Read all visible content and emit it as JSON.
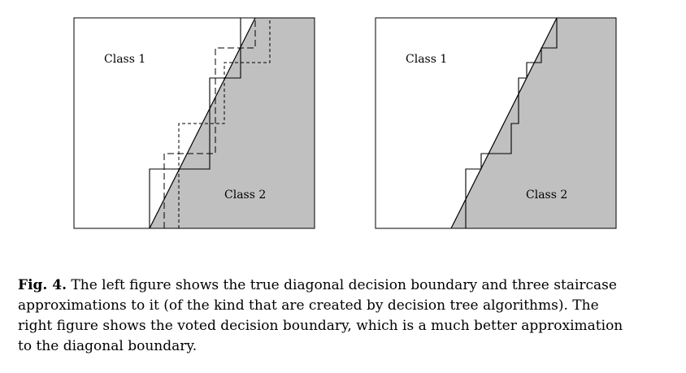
{
  "figure": {
    "left_panel": {
      "class1_label": "Class 1",
      "class2_label": "Class 2",
      "shade_color": "#c0c0c0",
      "lines": [
        "true diagonal decision boundary",
        "staircase approximation 1 (solid)",
        "staircase approximation 2 (dashed)",
        "staircase approximation 3 (dashed)"
      ]
    },
    "right_panel": {
      "class1_label": "Class 1",
      "class2_label": "Class 2",
      "shade_color": "#c0c0c0"
    }
  },
  "caption": {
    "label": "Fig. 4.",
    "line1": " The left figure shows the true diagonal decision boundary and three staircase",
    "line2": "approximations to it (of the kind that are created by decision tree algorithms). The",
    "line3": "right figure shows the voted decision boundary, which is a much better approximation",
    "line4": "to the diagonal boundary."
  }
}
